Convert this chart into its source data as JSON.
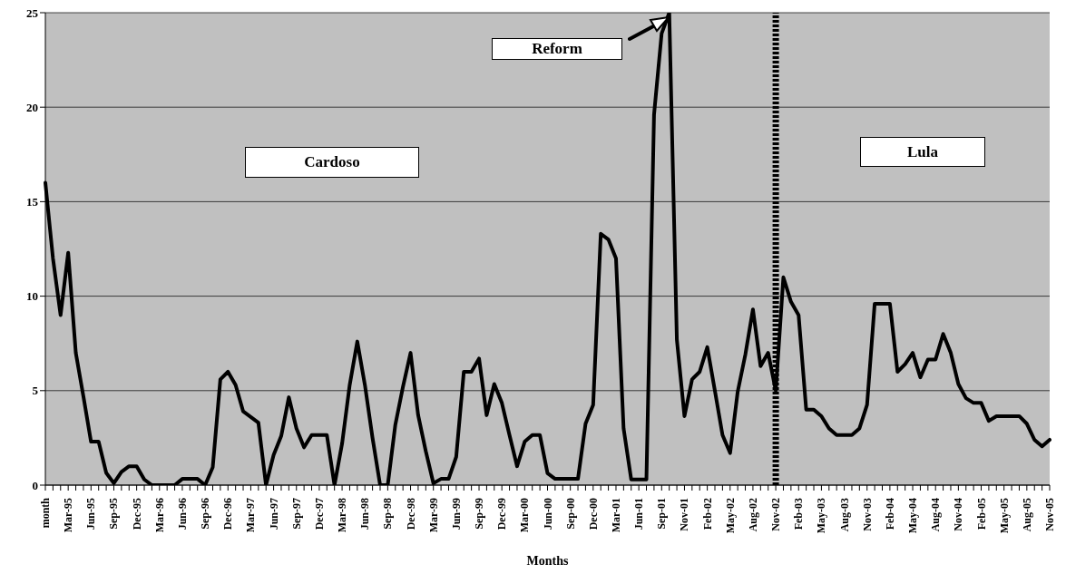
{
  "chart_data": {
    "type": "line",
    "xlabel": "Months",
    "categories": [
      "month",
      null,
      null,
      "Mar-95",
      null,
      null,
      "Jun-95",
      null,
      null,
      "Sep-95",
      null,
      null,
      "Dec-95",
      null,
      null,
      "Mar-96",
      null,
      null,
      "Jun-96",
      null,
      null,
      "Sep-96",
      null,
      null,
      "Dec-96",
      null,
      null,
      "Mar-97",
      null,
      null,
      "Jun-97",
      null,
      null,
      "Sep-97",
      null,
      null,
      "Dec-97",
      null,
      null,
      "Mar-98",
      null,
      null,
      "Jun-98",
      null,
      null,
      "Sep-98",
      null,
      null,
      "Dec-98",
      null,
      null,
      "Mar-99",
      null,
      null,
      "Jun-99",
      null,
      null,
      "Sep-99",
      null,
      null,
      "Dec-99",
      null,
      null,
      "Mar-00",
      null,
      null,
      "Jun-00",
      null,
      null,
      "Sep-00",
      null,
      null,
      "Dec-00",
      null,
      null,
      "Mar-01",
      null,
      null,
      "Jun-01",
      null,
      null,
      "Sep-01",
      null,
      null,
      "Nov-01",
      null,
      null,
      "Feb-02",
      null,
      null,
      "May-02",
      null,
      null,
      "Aug-02",
      null,
      null,
      "Nov-02",
      null,
      null,
      "Feb-03",
      null,
      null,
      "May-03",
      null,
      null,
      "Aug-03",
      null,
      null,
      "Nov-03",
      null,
      null,
      "Feb-04",
      null,
      null,
      "May-04",
      null,
      null,
      "Aug-04",
      null,
      null,
      "Nov-04",
      null,
      null,
      "Feb-05",
      null,
      null,
      "May-05",
      null,
      null,
      "Aug-05",
      null,
      null,
      "Nov-05"
    ],
    "series": [
      {
        "color": "#000000",
        "values": [
          16,
          12,
          9,
          12.3,
          7,
          4.7,
          2.3,
          2.3,
          0.65,
          0.1,
          0.7,
          1,
          1,
          0.3,
          0,
          0,
          0,
          0,
          0.33,
          0.33,
          0.33,
          0,
          0.95,
          5.6,
          6,
          5.3,
          3.9,
          3.6,
          3.3,
          0,
          1.6,
          2.6,
          4.65,
          3,
          2,
          2.65,
          2.65,
          2.65,
          0,
          2.2,
          5.3,
          7.6,
          5.3,
          2.5,
          0,
          0,
          3.2,
          5.2,
          7,
          3.7,
          1.8,
          0.1,
          0.33,
          0.33,
          1.5,
          6,
          6,
          6.7,
          3.7,
          5.35,
          4.35,
          2.65,
          1,
          2.3,
          2.65,
          2.65,
          0.63,
          0.33,
          0.33,
          0.33,
          0.33,
          3.25,
          4.25,
          13.3,
          13,
          12,
          3,
          0.3,
          0.3,
          0.3,
          19.6,
          23.9,
          25,
          7.7,
          3.65,
          5.6,
          6,
          7.3,
          5,
          2.65,
          1.7,
          4.95,
          6.9,
          9.3,
          6.3,
          7,
          5,
          11,
          9.7,
          9,
          4,
          4,
          3.65,
          3,
          2.65,
          2.65,
          2.65,
          3,
          4.25,
          9.6,
          9.6,
          9.6,
          6,
          6.4,
          7,
          5.7,
          6.65,
          6.65,
          8,
          7,
          5.35,
          4.6,
          4.35,
          4.35,
          3.4,
          3.65,
          3.65,
          3.65,
          3.65,
          3.25,
          2.4,
          2.05,
          2.4
        ]
      }
    ],
    "ylim": [
      0,
      25
    ],
    "yticks": [
      0,
      5,
      10,
      15,
      20,
      25
    ],
    "grid": "y",
    "ref_lines": [
      {
        "axis": "x",
        "value": "Nov-02",
        "color": "#000000",
        "line_style": "dotted"
      }
    ],
    "annotations": [
      "Cardoso",
      "Reform",
      "Lula"
    ]
  }
}
